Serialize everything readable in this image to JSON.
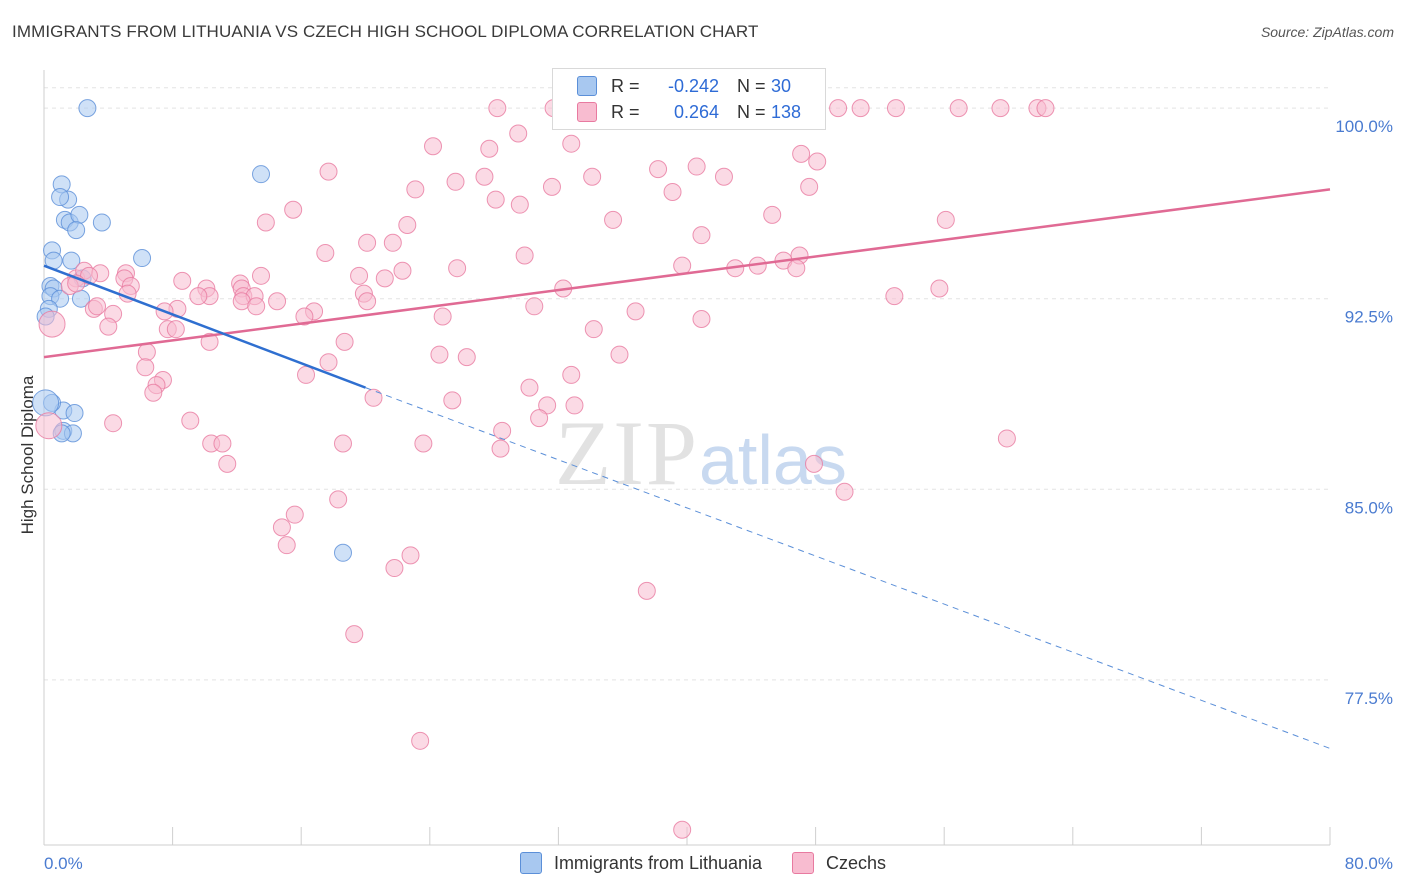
{
  "title": "IMMIGRANTS FROM LITHUANIA VS CZECH HIGH SCHOOL DIPLOMA CORRELATION CHART",
  "source": "Source: ZipAtlas.com",
  "watermark": {
    "zip": "ZIP",
    "atlas": "atlas"
  },
  "legend": {
    "r_label": "R =",
    "n_label": "N =",
    "rows": [
      {
        "name": "Immigrants from Lithuania",
        "r": "-0.242",
        "n": "30",
        "color": "#a8c8f0",
        "stroke": "#5b8fd8"
      },
      {
        "name": "Czechs",
        "r": "0.264",
        "n": "138",
        "color": "#f8bcd0",
        "stroke": "#e87aa0"
      }
    ]
  },
  "chart_data": {
    "type": "scatter",
    "title": "IMMIGRANTS FROM LITHUANIA VS CZECH HIGH SCHOOL DIPLOMA CORRELATION CHART",
    "xlabel": "",
    "ylabel": "High School Diploma",
    "xlim": [
      0,
      80
    ],
    "ylim": [
      71,
      101.5
    ],
    "x_tick_labels": [
      "0.0%",
      "80.0%"
    ],
    "y_ticks": [
      77.5,
      85.0,
      92.5,
      100.0
    ],
    "y_tick_labels": [
      "77.5%",
      "85.0%",
      "92.5%",
      "100.0%"
    ],
    "grid": true,
    "series": [
      {
        "name": "Immigrants from Lithuania",
        "color": "#a8c8f0",
        "stroke": "#5b8fd8",
        "points": [
          [
            2.7,
            100.0
          ],
          [
            1.1,
            97.0
          ],
          [
            1.5,
            96.4
          ],
          [
            1.0,
            96.5
          ],
          [
            1.3,
            95.6
          ],
          [
            1.6,
            95.5
          ],
          [
            2.2,
            95.8
          ],
          [
            2.0,
            95.2
          ],
          [
            3.6,
            95.5
          ],
          [
            0.5,
            94.4
          ],
          [
            0.6,
            94.0
          ],
          [
            1.7,
            94.0
          ],
          [
            6.1,
            94.1
          ],
          [
            2.4,
            93.3
          ],
          [
            0.4,
            93.0
          ],
          [
            0.6,
            92.9
          ],
          [
            0.4,
            92.6
          ],
          [
            1.0,
            92.5
          ],
          [
            2.3,
            92.5
          ],
          [
            0.3,
            92.1
          ],
          [
            0.1,
            91.8
          ],
          [
            13.5,
            97.4
          ],
          [
            1.2,
            88.1
          ],
          [
            0.5,
            88.4
          ],
          [
            0.1,
            88.4
          ],
          [
            1.2,
            87.3
          ],
          [
            1.8,
            87.2
          ],
          [
            1.1,
            87.2
          ],
          [
            1.9,
            88.0
          ],
          [
            18.6,
            82.5
          ]
        ],
        "trend_solid": [
          [
            0.0,
            93.8
          ],
          [
            20.0,
            89.0
          ]
        ],
        "trend_dashed": [
          [
            20.0,
            89.0
          ],
          [
            80.0,
            74.8
          ]
        ]
      },
      {
        "name": "Czechs",
        "color": "#f8bcd0",
        "stroke": "#e87aa0",
        "points": [
          [
            28.2,
            100.0
          ],
          [
            31.7,
            100.0
          ],
          [
            37.9,
            100.0
          ],
          [
            46.4,
            100.0
          ],
          [
            49.4,
            100.0
          ],
          [
            50.8,
            100.0
          ],
          [
            53.0,
            100.0
          ],
          [
            56.9,
            100.0
          ],
          [
            59.5,
            100.0
          ],
          [
            61.8,
            100.0
          ],
          [
            62.3,
            100.0
          ],
          [
            29.5,
            99.0
          ],
          [
            32.8,
            98.6
          ],
          [
            24.2,
            98.5
          ],
          [
            27.7,
            98.4
          ],
          [
            47.1,
            98.2
          ],
          [
            48.1,
            97.9
          ],
          [
            40.6,
            97.7
          ],
          [
            38.2,
            97.6
          ],
          [
            17.7,
            97.5
          ],
          [
            42.3,
            97.3
          ],
          [
            34.1,
            97.3
          ],
          [
            25.6,
            97.1
          ],
          [
            27.4,
            97.3
          ],
          [
            31.6,
            96.9
          ],
          [
            47.6,
            96.9
          ],
          [
            39.1,
            96.7
          ],
          [
            23.1,
            96.8
          ],
          [
            28.1,
            96.4
          ],
          [
            29.6,
            96.2
          ],
          [
            15.5,
            96.0
          ],
          [
            45.3,
            95.8
          ],
          [
            35.4,
            95.6
          ],
          [
            13.8,
            95.5
          ],
          [
            56.1,
            95.6
          ],
          [
            22.6,
            95.4
          ],
          [
            40.9,
            95.0
          ],
          [
            20.1,
            94.7
          ],
          [
            21.7,
            94.7
          ],
          [
            17.5,
            94.3
          ],
          [
            29.9,
            94.2
          ],
          [
            47.0,
            94.2
          ],
          [
            46.0,
            94.0
          ],
          [
            44.4,
            93.8
          ],
          [
            39.7,
            93.8
          ],
          [
            25.7,
            93.7
          ],
          [
            46.8,
            93.7
          ],
          [
            43.0,
            93.7
          ],
          [
            22.3,
            93.6
          ],
          [
            13.5,
            93.4
          ],
          [
            5.1,
            93.5
          ],
          [
            5.0,
            93.3
          ],
          [
            19.6,
            93.4
          ],
          [
            21.2,
            93.3
          ],
          [
            2.0,
            93.3
          ],
          [
            2.5,
            93.6
          ],
          [
            3.5,
            93.5
          ],
          [
            2.8,
            93.4
          ],
          [
            8.6,
            93.2
          ],
          [
            12.2,
            93.1
          ],
          [
            12.3,
            92.9
          ],
          [
            5.4,
            93.0
          ],
          [
            1.6,
            93.0
          ],
          [
            2.0,
            93.1
          ],
          [
            10.1,
            92.9
          ],
          [
            10.3,
            92.6
          ],
          [
            12.4,
            92.6
          ],
          [
            13.1,
            92.6
          ],
          [
            14.5,
            92.4
          ],
          [
            5.2,
            92.7
          ],
          [
            9.6,
            92.6
          ],
          [
            32.3,
            92.9
          ],
          [
            55.7,
            92.9
          ],
          [
            19.9,
            92.7
          ],
          [
            12.3,
            92.4
          ],
          [
            20.1,
            92.4
          ],
          [
            52.9,
            92.6
          ],
          [
            13.2,
            92.2
          ],
          [
            8.3,
            92.1
          ],
          [
            30.5,
            92.2
          ],
          [
            3.1,
            92.1
          ],
          [
            3.3,
            92.2
          ],
          [
            4.3,
            91.9
          ],
          [
            7.5,
            92.0
          ],
          [
            16.8,
            92.0
          ],
          [
            24.8,
            91.8
          ],
          [
            36.8,
            92.0
          ],
          [
            40.9,
            91.7
          ],
          [
            16.2,
            91.8
          ],
          [
            0.5,
            91.5
          ],
          [
            7.7,
            91.3
          ],
          [
            8.2,
            91.3
          ],
          [
            34.2,
            91.3
          ],
          [
            10.3,
            90.8
          ],
          [
            18.7,
            90.8
          ],
          [
            4.0,
            91.4
          ],
          [
            35.8,
            90.3
          ],
          [
            24.6,
            90.3
          ],
          [
            26.3,
            90.2
          ],
          [
            6.4,
            90.4
          ],
          [
            17.7,
            90.0
          ],
          [
            6.3,
            89.8
          ],
          [
            16.3,
            89.5
          ],
          [
            32.8,
            89.5
          ],
          [
            7.4,
            89.3
          ],
          [
            7.0,
            89.1
          ],
          [
            30.2,
            89.0
          ],
          [
            6.8,
            88.8
          ],
          [
            20.5,
            88.6
          ],
          [
            25.4,
            88.5
          ],
          [
            31.3,
            88.3
          ],
          [
            33.0,
            88.3
          ],
          [
            30.8,
            87.8
          ],
          [
            9.1,
            87.7
          ],
          [
            28.5,
            87.3
          ],
          [
            4.3,
            87.6
          ],
          [
            59.9,
            87.0
          ],
          [
            10.4,
            86.8
          ],
          [
            11.1,
            86.8
          ],
          [
            18.6,
            86.8
          ],
          [
            23.6,
            86.8
          ],
          [
            28.4,
            86.6
          ],
          [
            11.4,
            86.0
          ],
          [
            47.9,
            86.0
          ],
          [
            49.8,
            84.9
          ],
          [
            18.3,
            84.6
          ],
          [
            15.6,
            84.0
          ],
          [
            14.8,
            83.5
          ],
          [
            15.1,
            82.8
          ],
          [
            22.8,
            82.4
          ],
          [
            21.8,
            81.9
          ],
          [
            37.5,
            81.0
          ],
          [
            19.3,
            79.3
          ],
          [
            23.4,
            75.1
          ],
          [
            39.7,
            71.6
          ],
          [
            0.3,
            87.5
          ]
        ],
        "trend_solid": [
          [
            0.0,
            90.2
          ],
          [
            80.0,
            96.8
          ]
        ]
      }
    ]
  },
  "bottom_legend": [
    {
      "name": "Immigrants from Lithuania",
      "color": "#a8c8f0",
      "stroke": "#5b8fd8"
    },
    {
      "name": "Czechs",
      "color": "#f8bcd0",
      "stroke": "#e87aa0"
    }
  ]
}
